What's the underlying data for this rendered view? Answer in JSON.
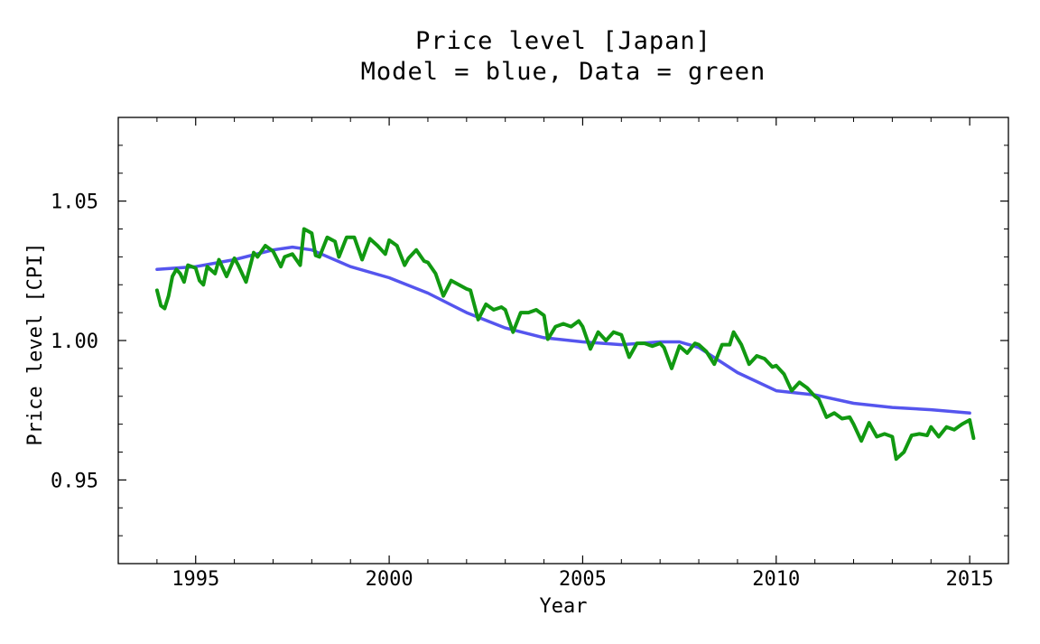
{
  "chart_data": {
    "type": "line",
    "title": "Price level [Japan]",
    "subtitle": "Model = blue, Data = green",
    "xlabel": "Year",
    "ylabel": "Price level [CPI]",
    "xlim": [
      1993.0,
      2016.0
    ],
    "ylim": [
      0.92,
      1.08
    ],
    "x_ticks": [
      1995,
      2000,
      2005,
      2010,
      2015
    ],
    "y_ticks": [
      0.95,
      1.0,
      1.05
    ],
    "y_tick_labels": [
      "0.95",
      "1.00",
      "1.05"
    ],
    "grid": false,
    "series": [
      {
        "color": "#5555ee",
        "x": [
          1994.0,
          1995.0,
          1996.0,
          1997.0,
          1997.5,
          1998.0,
          1999.0,
          2000.0,
          2001.0,
          2002.0,
          2003.0,
          2004.0,
          2005.0,
          2006.0,
          2007.0,
          2007.5,
          2008.0,
          2009.0,
          2010.0,
          2011.0,
          2012.0,
          2013.0,
          2014.0,
          2015.0
        ],
        "y": [
          1.0255,
          1.0265,
          1.029,
          1.0325,
          1.0335,
          1.0325,
          1.0265,
          1.0225,
          1.017,
          1.01,
          1.0045,
          1.001,
          0.9995,
          0.9985,
          0.9995,
          0.9995,
          0.9975,
          0.9885,
          0.982,
          0.9805,
          0.9775,
          0.976,
          0.9752,
          0.974
        ]
      },
      {
        "color": "#119911",
        "x": [
          1994.0,
          1994.1,
          1994.2,
          1994.3,
          1994.4,
          1994.5,
          1994.6,
          1994.7,
          1994.8,
          1995.0,
          1995.1,
          1995.2,
          1995.3,
          1995.5,
          1995.6,
          1995.8,
          1996.0,
          1996.1,
          1996.3,
          1996.5,
          1996.6,
          1996.8,
          1997.0,
          1997.2,
          1997.3,
          1997.5,
          1997.7,
          1997.8,
          1998.0,
          1998.1,
          1998.2,
          1998.4,
          1998.6,
          1998.7,
          1998.9,
          1999.1,
          1999.3,
          1999.5,
          1999.7,
          1999.9,
          2000.0,
          2000.2,
          2000.4,
          2000.5,
          2000.7,
          2000.9,
          2001.0,
          2001.2,
          2001.4,
          2001.6,
          2001.8,
          2002.0,
          2002.1,
          2002.3,
          2002.5,
          2002.7,
          2002.9,
          2003.0,
          2003.2,
          2003.4,
          2003.6,
          2003.8,
          2004.0,
          2004.1,
          2004.3,
          2004.5,
          2004.7,
          2004.9,
          2005.0,
          2005.2,
          2005.4,
          2005.6,
          2005.8,
          2006.0,
          2006.2,
          2006.4,
          2006.6,
          2006.8,
          2007.0,
          2007.1,
          2007.3,
          2007.5,
          2007.7,
          2007.9,
          2008.0,
          2008.2,
          2008.4,
          2008.6,
          2008.8,
          2008.9,
          2009.1,
          2009.3,
          2009.5,
          2009.7,
          2009.9,
          2010.0,
          2010.2,
          2010.4,
          2010.6,
          2010.8,
          2011.0,
          2011.1,
          2011.3,
          2011.5,
          2011.7,
          2011.9,
          2012.0,
          2012.2,
          2012.4,
          2012.6,
          2012.8,
          2013.0,
          2013.1,
          2013.3,
          2013.5,
          2013.7,
          2013.9,
          2014.0,
          2014.2,
          2014.4,
          2014.6,
          2014.8,
          2015.0,
          2015.1
        ],
        "y": [
          1.018,
          1.0125,
          1.0115,
          1.016,
          1.023,
          1.0255,
          1.024,
          1.021,
          1.027,
          1.026,
          1.0215,
          1.02,
          1.0265,
          1.024,
          1.029,
          1.023,
          1.0295,
          1.027,
          1.021,
          1.0315,
          1.03,
          1.034,
          1.032,
          1.0265,
          1.03,
          1.031,
          1.027,
          1.04,
          1.0385,
          1.0305,
          1.03,
          1.037,
          1.0355,
          1.03,
          1.037,
          1.037,
          1.029,
          1.0365,
          1.034,
          1.031,
          1.036,
          1.034,
          1.027,
          1.0295,
          1.0325,
          1.0285,
          1.028,
          1.024,
          1.016,
          1.0215,
          1.02,
          1.0185,
          1.018,
          1.0075,
          1.013,
          1.011,
          1.012,
          1.011,
          1.003,
          1.01,
          1.01,
          1.011,
          1.009,
          1.0005,
          1.005,
          1.006,
          1.005,
          1.007,
          1.005,
          0.997,
          1.003,
          1.0,
          1.003,
          1.002,
          0.994,
          0.999,
          0.999,
          0.998,
          0.999,
          0.9975,
          0.99,
          0.998,
          0.9955,
          0.999,
          0.9985,
          0.996,
          0.9915,
          0.9985,
          0.9985,
          1.003,
          0.9985,
          0.9915,
          0.9945,
          0.9935,
          0.9905,
          0.991,
          0.988,
          0.982,
          0.985,
          0.983,
          0.98,
          0.979,
          0.9725,
          0.974,
          0.972,
          0.9725,
          0.97,
          0.964,
          0.9705,
          0.9655,
          0.9665,
          0.9655,
          0.9575,
          0.96,
          0.966,
          0.9665,
          0.966,
          0.969,
          0.9655,
          0.969,
          0.968,
          0.97,
          0.9715,
          0.965
        ]
      }
    ]
  }
}
